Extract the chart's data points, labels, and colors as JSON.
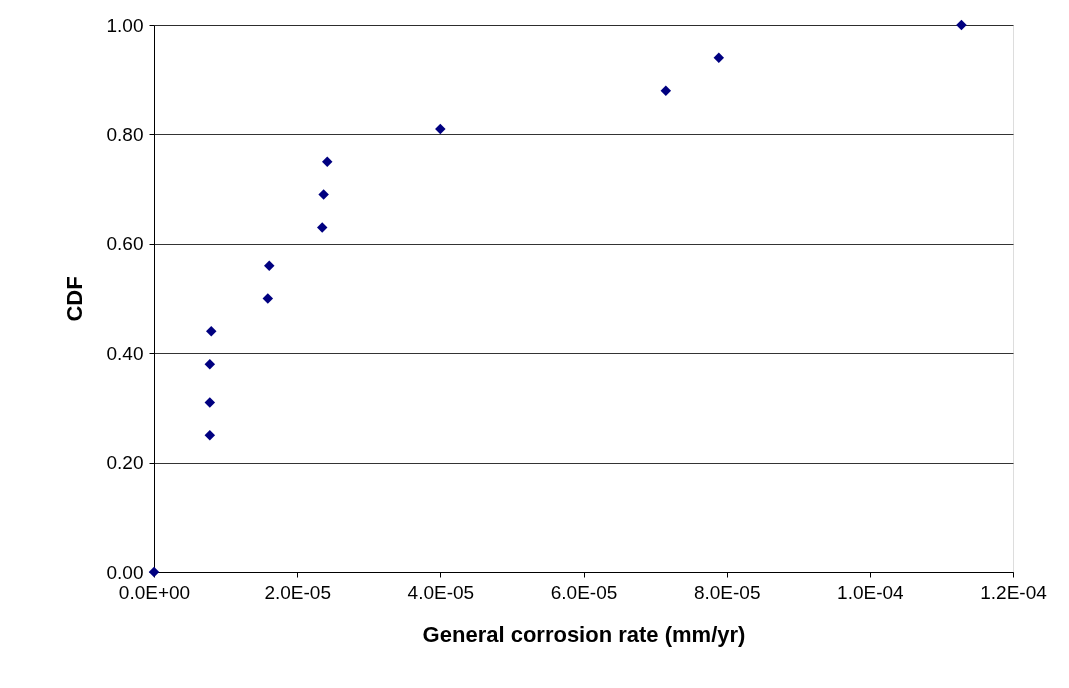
{
  "chart_data": {
    "type": "scatter",
    "xlabel": "General corrosion rate (mm/yr)",
    "ylabel": "CDF",
    "x": [
      0,
      7.8e-06,
      7.8e-06,
      7.8e-06,
      8e-06,
      1.59e-05,
      1.61e-05,
      2.35e-05,
      2.37e-05,
      2.42e-05,
      4e-05,
      7.15e-05,
      7.89e-05,
      0.0001128
    ],
    "series": [
      {
        "color": "#000080",
        "values": [
          0,
          0.25,
          0.31,
          0.38,
          0.44,
          0.5,
          0.56,
          0.63,
          0.69,
          0.75,
          0.81,
          0.88,
          0.94,
          1.0
        ]
      }
    ],
    "xlim": [
      0,
      0.00012
    ],
    "xticks": [
      {
        "value": 0,
        "label": "0.0E+00"
      },
      {
        "value": 2e-05,
        "label": "2.0E-05"
      },
      {
        "value": 4e-05,
        "label": "4.0E-05"
      },
      {
        "value": 6e-05,
        "label": "6.0E-05"
      },
      {
        "value": 8e-05,
        "label": "8.0E-05"
      },
      {
        "value": 0.0001,
        "label": "1.0E-04"
      },
      {
        "value": 0.00012,
        "label": "1.2E-04"
      }
    ],
    "ylim": [
      0,
      1
    ],
    "yticks": [
      {
        "value": 0,
        "label": "0.00"
      },
      {
        "value": 0.2,
        "label": "0.20"
      },
      {
        "value": 0.4,
        "label": "0.40"
      },
      {
        "value": 0.6,
        "label": "0.60"
      },
      {
        "value": 0.8,
        "label": "0.80"
      },
      {
        "value": 1,
        "label": "1.00"
      }
    ],
    "grid": "y",
    "marker": "diamond"
  }
}
